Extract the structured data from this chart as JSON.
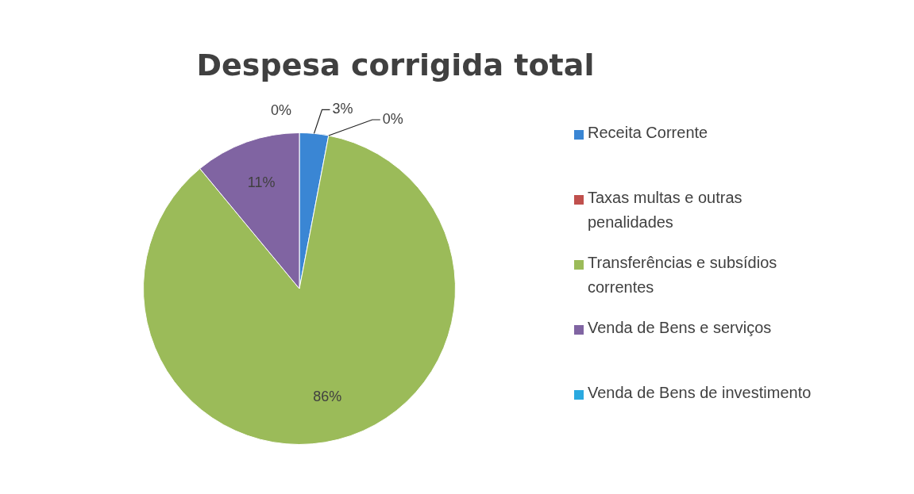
{
  "chart_data": {
    "type": "pie",
    "title": "Despesa corrigida total",
    "categories": [
      "Receita Corrente",
      "Taxas multas e outras penalidades",
      "Transferências e subsídios correntes",
      "Venda de Bens e serviços",
      "Venda de Bens de investimento"
    ],
    "values": [
      3,
      0,
      86,
      11,
      0
    ],
    "colors": [
      "#3a86d4",
      "#c0504d",
      "#9bbb59",
      "#8064a2",
      "#2aa9e0"
    ],
    "value_labels": [
      "3%",
      "0%",
      "86%",
      "11%",
      "0%"
    ],
    "legend": "right"
  }
}
